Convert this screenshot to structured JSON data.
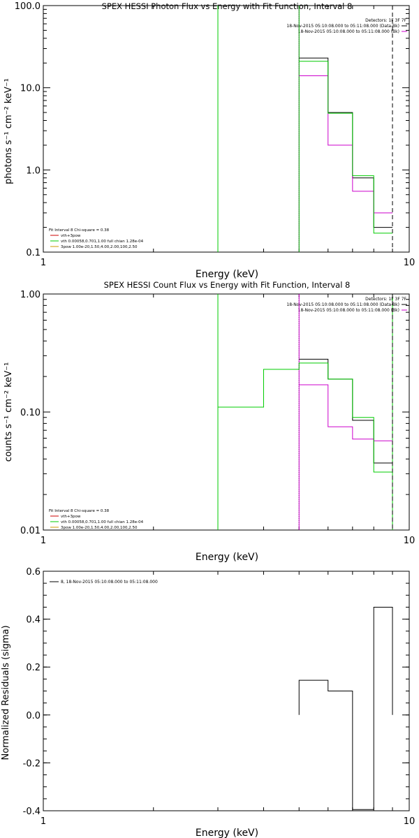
{
  "chart_data": [
    {
      "type": "line",
      "title": "SPEX HESSI Photon Flux vs Energy with Fit Function, Interval 8",
      "xlabel": "Energy (keV)",
      "ylabel": "photons s⁻¹ cm⁻² keV⁻¹",
      "xscale": "log",
      "yscale": "log",
      "xlim": [
        1,
        10
      ],
      "ylim": [
        0.1,
        100
      ],
      "xticks": [
        "1",
        "10"
      ],
      "yticks": [
        "0.1",
        "1.0",
        "10.0",
        "100.0"
      ],
      "ytick_values": [
        0.1,
        1,
        10,
        100
      ],
      "info": [
        "Detectors: 1F 3F 7F",
        "18-Nov-2015 05:10:08.000 to 05:11:08.000 (Data-Bk)",
        "18-Nov-2015 05:10:08.000 to 05:11:08.000 (Bk)"
      ],
      "info_colors": [
        "#000000",
        "#000000",
        "#cc00cc"
      ],
      "fit_text": [
        "Fit Interval 8   Chi-square = 0.38",
        "vth+3pow",
        "vth 0.00058,0.701,1.00  full chian 1.28e-04",
        "3pow 1.00e-20,1.50,4.00,2.00,100,2.50"
      ],
      "fit_colors": [
        "#000000",
        "#cc0000",
        "#00cc00",
        "#cc9900"
      ],
      "series": [
        {
          "name": "Data-Bk",
          "color": "#000000",
          "bin_edges": [
            5,
            6,
            7,
            8,
            9
          ],
          "values": [
            23,
            5.0,
            0.8,
            0.2
          ]
        },
        {
          "name": "Bk",
          "color": "#cc00cc",
          "bin_edges": [
            5,
            6,
            7,
            8,
            9
          ],
          "values": [
            14,
            2.0,
            0.55,
            0.3
          ]
        },
        {
          "name": "vth+3pow",
          "color": "#00cc00",
          "bin_edges": [
            5,
            6,
            7,
            8,
            9
          ],
          "values": [
            21,
            4.9,
            0.85,
            0.17
          ]
        }
      ],
      "vlines": [
        {
          "x": 3,
          "style": "solid",
          "color": "#00cc00"
        },
        {
          "x": 5,
          "style": "dotted",
          "color": "#000000"
        },
        {
          "x": 5,
          "style": "solid",
          "color": "#cc00cc"
        },
        {
          "x": 5,
          "style": "solid",
          "color": "#00cc00"
        },
        {
          "x": 9,
          "style": "dashed",
          "color": "#000000"
        }
      ]
    },
    {
      "type": "line",
      "title": "SPEX HESSI Count Flux vs Energy with Fit Function, Interval 8",
      "xlabel": "Energy (keV)",
      "ylabel": "counts s⁻¹ cm⁻² keV⁻¹",
      "xscale": "log",
      "yscale": "log",
      "xlim": [
        1,
        10
      ],
      "ylim": [
        0.01,
        1
      ],
      "xticks": [
        "1",
        "10"
      ],
      "yticks": [
        "0.01",
        "0.10",
        "1.00"
      ],
      "ytick_values": [
        0.01,
        0.1,
        1
      ],
      "info": [
        "Detectors: 1F 3F 7F",
        "18-Nov-2015 05:10:08.000 to 05:11:08.000 (Data-Bk)",
        "18-Nov-2015 05:10:08.000 to 05:11:08.000 (Bk)"
      ],
      "info_colors": [
        "#000000",
        "#000000",
        "#cc00cc"
      ],
      "fit_text": [
        "Fit Interval 8   Chi-square = 0.38",
        "vth+3pow",
        "vth 0.00058,0.701,1.00  full chian 1.28e-04",
        "3pow 1.00e-20,1.50,4.00,2.00,100,2.50"
      ],
      "fit_colors": [
        "#000000",
        "#cc0000",
        "#00cc00",
        "#cc9900"
      ],
      "series": [
        {
          "name": "Data-Bk",
          "color": "#000000",
          "bin_edges": [
            5,
            6,
            7,
            8,
            9
          ],
          "values": [
            0.28,
            0.19,
            0.085,
            0.037
          ]
        },
        {
          "name": "Bk",
          "color": "#cc00cc",
          "bin_edges": [
            5,
            6,
            7,
            8,
            9
          ],
          "values": [
            0.17,
            0.075,
            0.059,
            0.057
          ]
        },
        {
          "name": "vth+3pow",
          "color": "#00cc00",
          "bin_edges": [
            3,
            4,
            5,
            6,
            7,
            8,
            9
          ],
          "values": [
            0.11,
            0.23,
            0.26,
            0.19,
            0.09,
            0.031
          ]
        }
      ],
      "vlines": [
        {
          "x": 3,
          "style": "solid",
          "color": "#00cc00"
        },
        {
          "x": 5,
          "style": "dotted",
          "color": "#000000"
        },
        {
          "x": 5,
          "style": "solid",
          "color": "#cc00cc"
        },
        {
          "x": 9,
          "style": "solid",
          "color": "#00cc00"
        },
        {
          "x": 9,
          "style": "dashed",
          "color": "#000000"
        }
      ]
    },
    {
      "type": "line",
      "title": "",
      "xlabel": "Energy (keV)",
      "ylabel": "Normalized Residuals (sigma)",
      "xscale": "log",
      "yscale": "linear",
      "xlim": [
        1,
        10
      ],
      "ylim": [
        -0.4,
        0.6
      ],
      "xticks": [
        "1",
        "10"
      ],
      "yticks": [
        "-0.4",
        "-0.2",
        "0.0",
        "0.2",
        "0.4",
        "0.6"
      ],
      "ytick_values": [
        -0.4,
        -0.2,
        0,
        0.2,
        0.4,
        0.6
      ],
      "legend": "8, 18-Nov-2015 05:10:08.000 to 05:11:08.000",
      "series": [
        {
          "name": "8, 18-Nov-2015 05:10:08.000 to 05:11:08.000",
          "color": "#000000",
          "bin_edges": [
            5,
            6,
            7,
            8,
            9
          ],
          "values": [
            0.145,
            0.1,
            -0.395,
            0.45
          ]
        }
      ]
    }
  ]
}
